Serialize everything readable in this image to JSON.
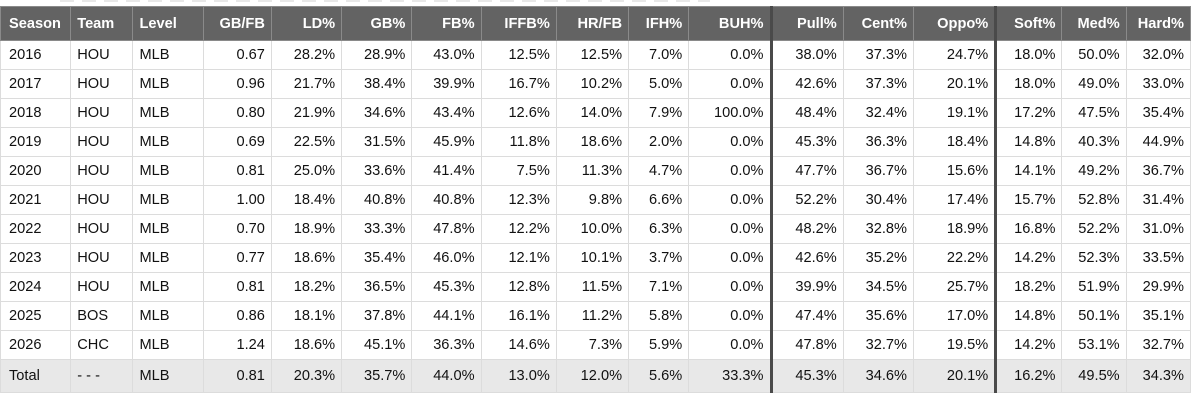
{
  "table": {
    "columns": [
      {
        "key": "season",
        "label": "Season",
        "align": "left"
      },
      {
        "key": "team",
        "label": "Team",
        "align": "left"
      },
      {
        "key": "level",
        "label": "Level",
        "align": "left"
      },
      {
        "key": "gb_fb",
        "label": "GB/FB",
        "align": "right"
      },
      {
        "key": "ld",
        "label": "LD%",
        "align": "right"
      },
      {
        "key": "gb",
        "label": "GB%",
        "align": "right"
      },
      {
        "key": "fb",
        "label": "FB%",
        "align": "right"
      },
      {
        "key": "iffb",
        "label": "IFFB%",
        "align": "right"
      },
      {
        "key": "hr_fb",
        "label": "HR/FB",
        "align": "right"
      },
      {
        "key": "ifh",
        "label": "IFH%",
        "align": "right"
      },
      {
        "key": "buh",
        "label": "BUH%",
        "align": "right"
      },
      {
        "key": "pull",
        "label": "Pull%",
        "align": "right"
      },
      {
        "key": "cent",
        "label": "Cent%",
        "align": "right"
      },
      {
        "key": "oppo",
        "label": "Oppo%",
        "align": "right"
      },
      {
        "key": "soft",
        "label": "Soft%",
        "align": "right"
      },
      {
        "key": "med",
        "label": "Med%",
        "align": "right"
      },
      {
        "key": "hard",
        "label": "Hard%",
        "align": "right"
      }
    ],
    "rows": [
      [
        "2016",
        "HOU",
        "MLB",
        "0.67",
        "28.2%",
        "28.9%",
        "43.0%",
        "12.5%",
        "12.5%",
        "7.0%",
        "0.0%",
        "38.0%",
        "37.3%",
        "24.7%",
        "18.0%",
        "50.0%",
        "32.0%"
      ],
      [
        "2017",
        "HOU",
        "MLB",
        "0.96",
        "21.7%",
        "38.4%",
        "39.9%",
        "16.7%",
        "10.2%",
        "5.0%",
        "0.0%",
        "42.6%",
        "37.3%",
        "20.1%",
        "18.0%",
        "49.0%",
        "33.0%"
      ],
      [
        "2018",
        "HOU",
        "MLB",
        "0.80",
        "21.9%",
        "34.6%",
        "43.4%",
        "12.6%",
        "14.0%",
        "7.9%",
        "100.0%",
        "48.4%",
        "32.4%",
        "19.1%",
        "17.2%",
        "47.5%",
        "35.4%"
      ],
      [
        "2019",
        "HOU",
        "MLB",
        "0.69",
        "22.5%",
        "31.5%",
        "45.9%",
        "11.8%",
        "18.6%",
        "2.0%",
        "0.0%",
        "45.3%",
        "36.3%",
        "18.4%",
        "14.8%",
        "40.3%",
        "44.9%"
      ],
      [
        "2020",
        "HOU",
        "MLB",
        "0.81",
        "25.0%",
        "33.6%",
        "41.4%",
        "7.5%",
        "11.3%",
        "4.7%",
        "0.0%",
        "47.7%",
        "36.7%",
        "15.6%",
        "14.1%",
        "49.2%",
        "36.7%"
      ],
      [
        "2021",
        "HOU",
        "MLB",
        "1.00",
        "18.4%",
        "40.8%",
        "40.8%",
        "12.3%",
        "9.8%",
        "6.6%",
        "0.0%",
        "52.2%",
        "30.4%",
        "17.4%",
        "15.7%",
        "52.8%",
        "31.4%"
      ],
      [
        "2022",
        "HOU",
        "MLB",
        "0.70",
        "18.9%",
        "33.3%",
        "47.8%",
        "12.2%",
        "10.0%",
        "6.3%",
        "0.0%",
        "48.2%",
        "32.8%",
        "18.9%",
        "16.8%",
        "52.2%",
        "31.0%"
      ],
      [
        "2023",
        "HOU",
        "MLB",
        "0.77",
        "18.6%",
        "35.4%",
        "46.0%",
        "12.1%",
        "10.1%",
        "3.7%",
        "0.0%",
        "42.6%",
        "35.2%",
        "22.2%",
        "14.2%",
        "52.3%",
        "33.5%"
      ],
      [
        "2024",
        "HOU",
        "MLB",
        "0.81",
        "18.2%",
        "36.5%",
        "45.3%",
        "12.8%",
        "11.5%",
        "7.1%",
        "0.0%",
        "39.9%",
        "34.5%",
        "25.7%",
        "18.2%",
        "51.9%",
        "29.9%"
      ],
      [
        "2025",
        "BOS",
        "MLB",
        "0.86",
        "18.1%",
        "37.8%",
        "44.1%",
        "16.1%",
        "11.2%",
        "5.8%",
        "0.0%",
        "47.4%",
        "35.6%",
        "17.0%",
        "14.8%",
        "50.1%",
        "35.1%"
      ],
      [
        "2026",
        "CHC",
        "MLB",
        "1.24",
        "18.6%",
        "45.1%",
        "36.3%",
        "14.6%",
        "7.3%",
        "5.9%",
        "0.0%",
        "47.8%",
        "32.7%",
        "19.5%",
        "14.2%",
        "53.1%",
        "32.7%"
      ]
    ],
    "total": [
      "Total",
      "- - -",
      "MLB",
      "0.81",
      "20.3%",
      "35.7%",
      "44.0%",
      "13.0%",
      "12.0%",
      "5.6%",
      "33.3%",
      "45.3%",
      "34.6%",
      "20.1%",
      "16.2%",
      "49.5%",
      "34.3%"
    ]
  },
  "colors": {
    "header_bg": "#636363",
    "header_text": "#ffffff",
    "total_bg": "#e8e8e8",
    "grid": "#dcdcdc",
    "group_separator": "#4a4a4a"
  }
}
